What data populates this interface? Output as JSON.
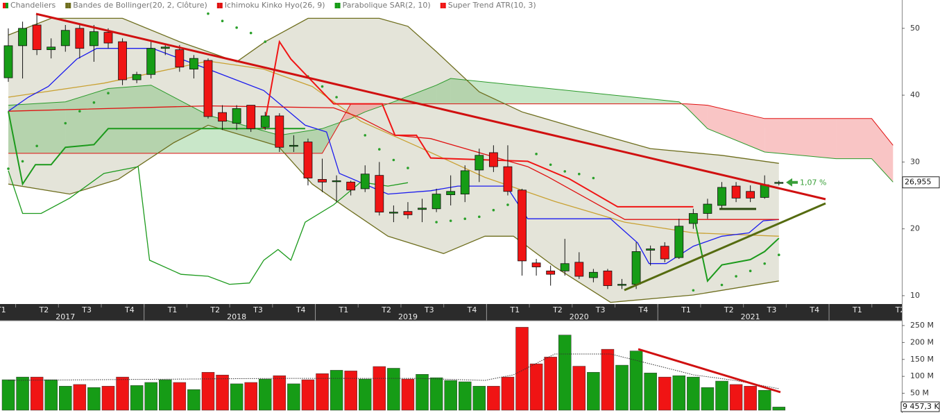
{
  "chart_data": [
    {
      "type": "candlestick",
      "name": "Chandeliers",
      "up_color": "#169c16",
      "down_color": "#f01414",
      "open": [
        42.6,
        47.4,
        50.5,
        46.8,
        47.4,
        50,
        47.4,
        49.4,
        48,
        42.3,
        43.1,
        47,
        46.8,
        43.9,
        45.2,
        37.4,
        35.8,
        38.5,
        35.2,
        36.9,
        32.4,
        33,
        27.4,
        27.2,
        27,
        26,
        28,
        22.4,
        22.6,
        22.9,
        23,
        25.1,
        25.2,
        28.8,
        31.4,
        29.3,
        25.8,
        14.9,
        13.7,
        13.7,
        15,
        12.7,
        13.7,
        11.6,
        11.7,
        16.8,
        17.4,
        15.7,
        20.8,
        22.3,
        23.5,
        26.4,
        25.6,
        24.7,
        26.9
      ],
      "high": [
        50,
        51,
        52,
        48.5,
        50.5,
        50.5,
        50.5,
        50,
        48.5,
        43.5,
        48,
        47.5,
        47.5,
        46,
        45.5,
        38.5,
        38.5,
        38.5,
        37.5,
        37.3,
        34,
        33.5,
        30.5,
        28,
        27.2,
        29.5,
        30,
        23.5,
        24,
        24.5,
        26,
        28,
        29.5,
        32,
        32.5,
        32.5,
        26,
        15.5,
        14.5,
        18.5,
        16.5,
        14,
        14,
        12.5,
        18,
        17.5,
        18,
        21.5,
        23,
        24.5,
        27,
        27,
        26.5,
        28,
        27.2
      ],
      "low": [
        42,
        42.5,
        46,
        45.5,
        46.5,
        45.5,
        45,
        47,
        41.5,
        41.8,
        42.5,
        46,
        43.5,
        42.5,
        36.5,
        34.8,
        34.8,
        34.5,
        34.8,
        31.5,
        31.5,
        26.5,
        25.5,
        24,
        25,
        25.5,
        22,
        21,
        21.5,
        21,
        22.5,
        23.5,
        24,
        27,
        28.5,
        25,
        13,
        13,
        11.5,
        13,
        12.5,
        12,
        11,
        11,
        11,
        14.5,
        15,
        15.5,
        20,
        21.5,
        23,
        24,
        24,
        24.5,
        26.5
      ],
      "close": [
        47.4,
        50,
        46.8,
        47.2,
        49.7,
        47,
        49.5,
        47.8,
        42.3,
        43.1,
        47,
        47.2,
        44.2,
        45.5,
        36.8,
        36.1,
        38,
        35,
        36.9,
        32.2,
        32.5,
        27.6,
        27,
        27.2,
        25.8,
        28.2,
        22.5,
        22.5,
        22.1,
        23.1,
        25.2,
        25.6,
        28.7,
        31,
        29.3,
        25.6,
        15.2,
        14.3,
        13.2,
        14.8,
        12.9,
        13.5,
        11.5,
        11.7,
        16.6,
        17,
        15.5,
        20.4,
        22.3,
        23.7,
        26.2,
        24.6,
        24.6,
        26.6,
        26.955
      ],
      "value_labels": [
        null,
        null,
        null,
        null,
        null,
        null,
        null,
        null,
        null,
        null,
        null,
        null,
        null,
        null,
        null,
        null,
        null,
        null,
        null,
        null,
        null,
        null,
        null,
        null,
        null,
        null,
        null,
        null,
        null,
        null,
        null,
        null,
        null,
        null,
        null,
        null,
        null,
        null,
        null,
        null,
        null,
        null,
        null,
        null,
        null,
        null,
        null,
        null,
        null,
        null,
        null,
        null,
        null,
        null,
        "26,955"
      ],
      "annotation": "1,07 %",
      "ylim": [
        8.75,
        54.24
      ],
      "yticks": [
        10,
        20,
        30,
        40,
        50
      ],
      "quarters": [
        "T1",
        "T2",
        "T3",
        "T4",
        "T1",
        "T2",
        "T3",
        "T4",
        "T1",
        "T2",
        "T3",
        "T4",
        "T1",
        "T2",
        "T3",
        "T4",
        "T1",
        "T2",
        "T3",
        "T4",
        "T1",
        "T2"
      ],
      "years": [
        "2017",
        "2018",
        "2019",
        "2020",
        "2021"
      ],
      "indicators": [
        {
          "name": "Bandes de Bollinger(20, 2, Clôture)",
          "color": "#6e6e1e",
          "fill": "#e4e4d9",
          "lines": [
            {
              "color": "#6e6e1e",
              "x": [
                0,
                3,
                8,
                12,
                14,
                16,
                18,
                21,
                26,
                28,
                30,
                33,
                36,
                40,
                45,
                50,
                54
              ],
              "values": [
                49,
                51.5,
                51.5,
                48,
                46.5,
                45,
                48,
                51.5,
                51.5,
                50.3,
                46.5,
                40.5,
                37.5,
                35,
                32,
                31,
                29.8
              ]
            },
            {
              "color": "#c9a132",
              "x": [
                0,
                6.7,
                14,
                17.9,
                21.3,
                24.7,
                28.6,
                33.4,
                38.3,
                43.2,
                48,
                54
              ],
              "values": [
                39.7,
                41.8,
                45.1,
                43.9,
                41.3,
                36.1,
                32.4,
                27.7,
                24.1,
                21,
                19.4,
                18.9
              ]
            },
            {
              "color": "#6e6e1e",
              "x": [
                0,
                4.3,
                7.7,
                11.6,
                14,
                18.9,
                21.3,
                23.7,
                26.6,
                30.5,
                33.4,
                35.4,
                38.3,
                42.2,
                48,
                54
              ],
              "values": [
                26.7,
                25.2,
                27.4,
                32.9,
                35.5,
                32.4,
                26.7,
                23.1,
                18.9,
                16.3,
                18.9,
                18.9,
                14.3,
                9,
                10.1,
                12.2
              ]
            }
          ]
        },
        {
          "name": "Ichimoku Kinko Hyo(26, 9)",
          "color": "#e01010",
          "cloud": {
            "x": [
              0,
              4,
              7,
              10,
              14,
              19,
              22,
              24,
              25,
              27,
              30,
              31,
              47,
              47.5,
              49,
              53,
              58,
              60.5,
              62
            ],
            "span_a": [
              38.5,
              39,
              41,
              41.5,
              37,
              34,
              35,
              36.5,
              37.5,
              39,
              41.5,
              42.5,
              39,
              38.2,
              35,
              31.5,
              30.5,
              30.5,
              27
            ],
            "span_b": [
              31.3,
              31.3,
              31.3,
              31.3,
              31.3,
              31.3,
              31.3,
              38.7,
              38.7,
              38.7,
              38.7,
              38.7,
              38.7,
              38.7,
              38.5,
              36.5,
              36.5,
              36.5,
              32.5
            ],
            "a_color": "#2a9a2a",
            "b_color": "#e01010",
            "up_fill": "rgba(60,170,60,0.28)",
            "down_fill": "rgba(240,110,110,0.4)"
          },
          "lines": [
            {
              "color": "#1a1aee",
              "x": [
                0,
                1.4,
                2.8,
                4.8,
                6.2,
                10.1,
                14,
                17.9,
                20.8,
                22.3,
                23.2,
                26.6,
                29.6,
                31.5,
                34.9,
                36.4,
                42.2,
                44.1,
                44.9,
                46.1,
                48,
                50,
                51.9,
                52.9,
                54
              ],
              "values": [
                37.6,
                39.7,
                41.3,
                45.4,
                47,
                47,
                43.9,
                40.7,
                35.5,
                34.5,
                28.3,
                25.2,
                25.7,
                26.4,
                26.4,
                21.5,
                21.5,
                17.9,
                14.8,
                14.8,
                17.4,
                18.9,
                19.4,
                21.2,
                21.4
              ]
            },
            {
              "color": "#e01010",
              "x": [
                0,
                14,
                22.8,
                24.7,
                27.1,
                29.6,
                36.4,
                37.8,
                43.2,
                54
              ],
              "values": [
                37.6,
                38.4,
                38.1,
                36.6,
                34,
                33.5,
                29.3,
                27.8,
                21.4,
                21.4
              ]
            },
            {
              "color": "#1c9a1c",
              "x": [
                0,
                1,
                2.3,
                4.3,
                6.7,
                9.1,
                9.9,
                12.1,
                14,
                15.5,
                16.9,
                17.9,
                18.9,
                19.8,
                20.8,
                22.8,
                24.7,
                26.6,
                28
              ],
              "values": [
                28.7,
                22.3,
                22.3,
                24.6,
                28.3,
                29.3,
                15.3,
                13.2,
                12.9,
                11.7,
                11.9,
                15.3,
                16.9,
                15.3,
                21,
                23.6,
                27,
                26.4,
                26.9
              ]
            }
          ]
        },
        {
          "name": "Parabolique SAR(2, 10)",
          "color": "#169c16",
          "dots": {
            "color": "#2aa02a",
            "x": [
              0,
              1,
              2,
              4,
              5,
              6,
              7,
              14,
              15,
              16,
              17,
              18,
              21,
              22,
              23,
              25,
              26,
              27,
              28,
              30,
              31,
              32,
              33,
              34,
              35,
              37,
              38,
              39,
              40,
              41,
              48,
              50,
              51,
              52,
              53,
              54
            ],
            "values": [
              29,
              30.1,
              32.4,
              35.8,
              37.6,
              38.9,
              40.3,
              52.2,
              51.1,
              50.1,
              49.3,
              48,
              42.8,
              41.3,
              39.7,
              34,
              31.9,
              30.3,
              29.1,
              21,
              21.2,
              21.5,
              21.8,
              22.8,
              23.6,
              31.2,
              29.6,
              28.6,
              28.2,
              27.6,
              10.8,
              11.6,
              12.9,
              13.7,
              14.8,
              16.1
            ]
          }
        },
        {
          "name": "Super Trend ATR(10, 3)",
          "color": "#f01414",
          "lines": [
            {
              "color": "#1c9a1c",
              "x": [
                0,
                1,
                1.9,
                3,
                4,
                6,
                7,
                20.8
              ],
              "values": [
                37.6,
                26.7,
                29.6,
                29.6,
                32.2,
                32.6,
                35,
                35
              ]
            },
            {
              "color": "#f01414",
              "x": [
                17.9,
                19,
                19.8,
                22.8,
                26.2,
                27.1,
                28.6,
                29.6,
                36.4,
                39.3,
                42.7,
                48
              ],
              "values": [
                35,
                48,
                45.4,
                38.7,
                38.7,
                34,
                34,
                30.6,
                30.1,
                27.5,
                23.3,
                23.3
              ]
            },
            {
              "color": "#1c9a1c",
              "x": [
                48,
                49,
                50,
                52,
                53,
                54
              ],
              "values": [
                22.3,
                12.2,
                14.6,
                15.4,
                16.6,
                18.6
              ]
            }
          ]
        }
      ]
    },
    {
      "type": "bar",
      "up_color": "#169c16",
      "down_color": "#f01414",
      "values": [
        90,
        98,
        98,
        90,
        71,
        76,
        67,
        71,
        98,
        73,
        82,
        90,
        82,
        61,
        112,
        104,
        78,
        82,
        92,
        102,
        78,
        90,
        108,
        118,
        116,
        92,
        129,
        124,
        92,
        106,
        96,
        88,
        84,
        71,
        71,
        98,
        245,
        137,
        157,
        222,
        130,
        112,
        180,
        133,
        175,
        110,
        98,
        102,
        98,
        67,
        86,
        76,
        71,
        59,
        9.4573
      ],
      "value_labels": [
        null,
        null,
        null,
        null,
        null,
        null,
        null,
        null,
        null,
        null,
        null,
        null,
        null,
        null,
        null,
        null,
        null,
        null,
        null,
        null,
        null,
        null,
        null,
        null,
        null,
        null,
        null,
        null,
        null,
        null,
        null,
        null,
        null,
        null,
        null,
        null,
        null,
        null,
        null,
        null,
        null,
        null,
        null,
        null,
        null,
        null,
        null,
        null,
        null,
        null,
        null,
        null,
        null,
        null,
        "9 457,3 K"
      ],
      "average": {
        "color": "#333333",
        "x": [
          0,
          18.9,
          28.6,
          33.4,
          35.4,
          38.3,
          42.2,
          46.1,
          48,
          50.9,
          54
        ],
        "values": [
          88,
          94,
          94,
          88,
          104.5,
          166,
          166,
          125,
          104.5,
          88,
          63.5
        ]
      },
      "ylim": [
        -8.2,
        264.3
      ],
      "yticks": [
        {
          "value": 50,
          "label": "50 M"
        },
        {
          "value": 100,
          "label": "100 M"
        },
        {
          "value": 150,
          "label": "150 M"
        },
        {
          "value": 200,
          "label": "200 M"
        },
        {
          "value": 250,
          "label": "250 M"
        }
      ]
    }
  ]
}
